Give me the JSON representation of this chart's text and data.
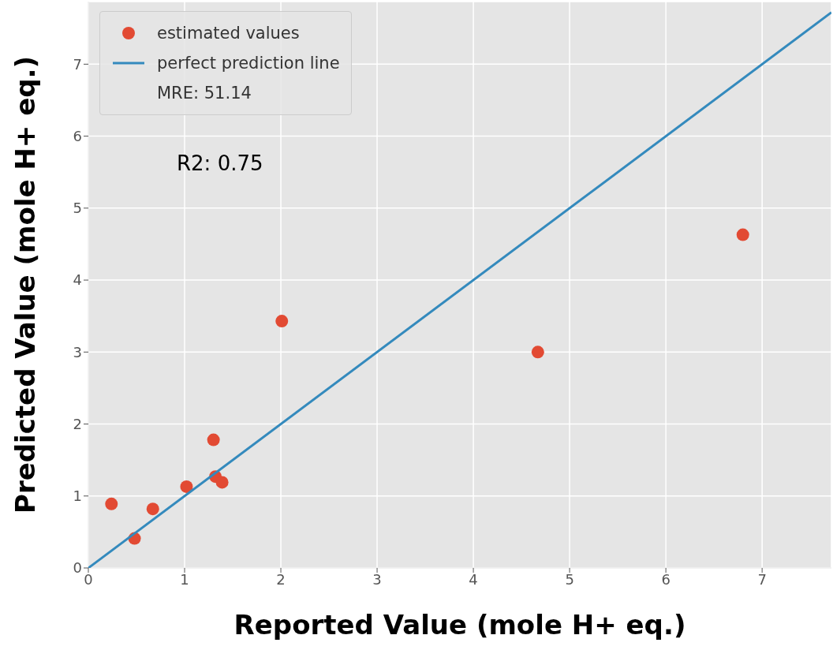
{
  "chart_data": {
    "type": "scatter",
    "xlabel": "Reported Value (mole H+ eq.)",
    "ylabel": "Predicted Value (mole H+ eq.)",
    "series": [
      {
        "name": "estimated values",
        "color": "#e24a33",
        "x": [
          0.24,
          0.48,
          0.67,
          1.02,
          1.3,
          1.32,
          1.39,
          2.01,
          4.67,
          6.8
        ],
        "values": [
          0.89,
          0.41,
          0.82,
          1.13,
          1.78,
          1.27,
          1.19,
          3.43,
          3.0,
          4.63
        ]
      },
      {
        "name": "perfect prediction line",
        "type": "line",
        "marker": "none",
        "color": "#348abd",
        "x": [
          0,
          7.72
        ],
        "values": [
          0,
          7.72
        ]
      }
    ],
    "annotations": [
      "MRE: 51.14",
      "R2: 0.75"
    ],
    "xlim": [
      0,
      7.72
    ],
    "ylim": [
      0,
      7.87
    ],
    "xticks": [
      0,
      1,
      2,
      3,
      4,
      5,
      6,
      7
    ],
    "yticks": [
      0,
      1,
      2,
      3,
      4,
      5,
      6,
      7
    ],
    "grid": true,
    "legend": "top left",
    "marker": "circle"
  }
}
